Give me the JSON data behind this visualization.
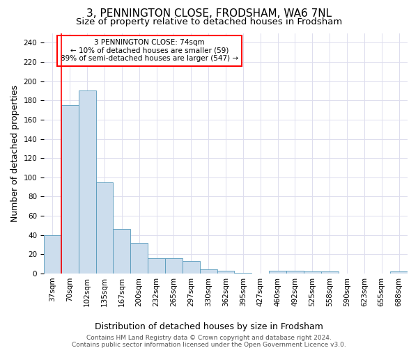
{
  "title": "3, PENNINGTON CLOSE, FRODSHAM, WA6 7NL",
  "subtitle": "Size of property relative to detached houses in Frodsham",
  "xlabel": "Distribution of detached houses by size in Frodsham",
  "ylabel": "Number of detached properties",
  "bin_labels": [
    "37sqm",
    "70sqm",
    "102sqm",
    "135sqm",
    "167sqm",
    "200sqm",
    "232sqm",
    "265sqm",
    "297sqm",
    "330sqm",
    "362sqm",
    "395sqm",
    "427sqm",
    "460sqm",
    "492sqm",
    "525sqm",
    "558sqm",
    "590sqm",
    "623sqm",
    "655sqm",
    "688sqm"
  ],
  "bar_heights": [
    40,
    175,
    190,
    95,
    46,
    32,
    16,
    16,
    13,
    4,
    3,
    1,
    0,
    3,
    3,
    2,
    2,
    0,
    0,
    0,
    2
  ],
  "bar_color": "#ccdded",
  "bar_edge_color": "#5599bb",
  "red_line_x": 0.5,
  "annotation_text_lines": [
    "3 PENNINGTON CLOSE: 74sqm",
    "← 10% of detached houses are smaller (59)",
    "89% of semi-detached houses are larger (547) →"
  ],
  "annotation_box_color": "white",
  "annotation_box_edge": "red",
  "red_line_color": "red",
  "ylim": [
    0,
    250
  ],
  "yticks": [
    0,
    20,
    40,
    60,
    80,
    100,
    120,
    140,
    160,
    180,
    200,
    220,
    240
  ],
  "footer_lines": [
    "Contains HM Land Registry data © Crown copyright and database right 2024.",
    "Contains public sector information licensed under the Open Government Licence v3.0."
  ],
  "background_color": "#ffffff",
  "plot_bg_color": "#ffffff",
  "grid_color": "#ddddee",
  "title_fontsize": 11,
  "subtitle_fontsize": 9.5,
  "label_fontsize": 9,
  "tick_fontsize": 7.5,
  "footer_fontsize": 6.5
}
